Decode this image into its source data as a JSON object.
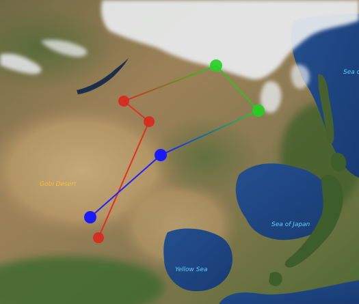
{
  "map": {
    "labels": {
      "gobi_desert": "Gobi Desert",
      "sea_of_japan": "Sea of Japan",
      "yellow_sea": "Yellow Sea",
      "sea_partial": "Sea o"
    },
    "label_colors": {
      "land": "#f0c040",
      "water": "#5fd0ff"
    },
    "routes": [
      {
        "name": "",
        "color": "#e03020",
        "stops": 3
      },
      {
        "name": "",
        "color": "#2020ff",
        "stops": 2
      },
      {
        "name": "",
        "color": "#30c020",
        "stops": 2
      }
    ],
    "marker_colors": {
      "red": "#d8281c",
      "blue": "#1a1aff",
      "green": "#22d022"
    }
  }
}
